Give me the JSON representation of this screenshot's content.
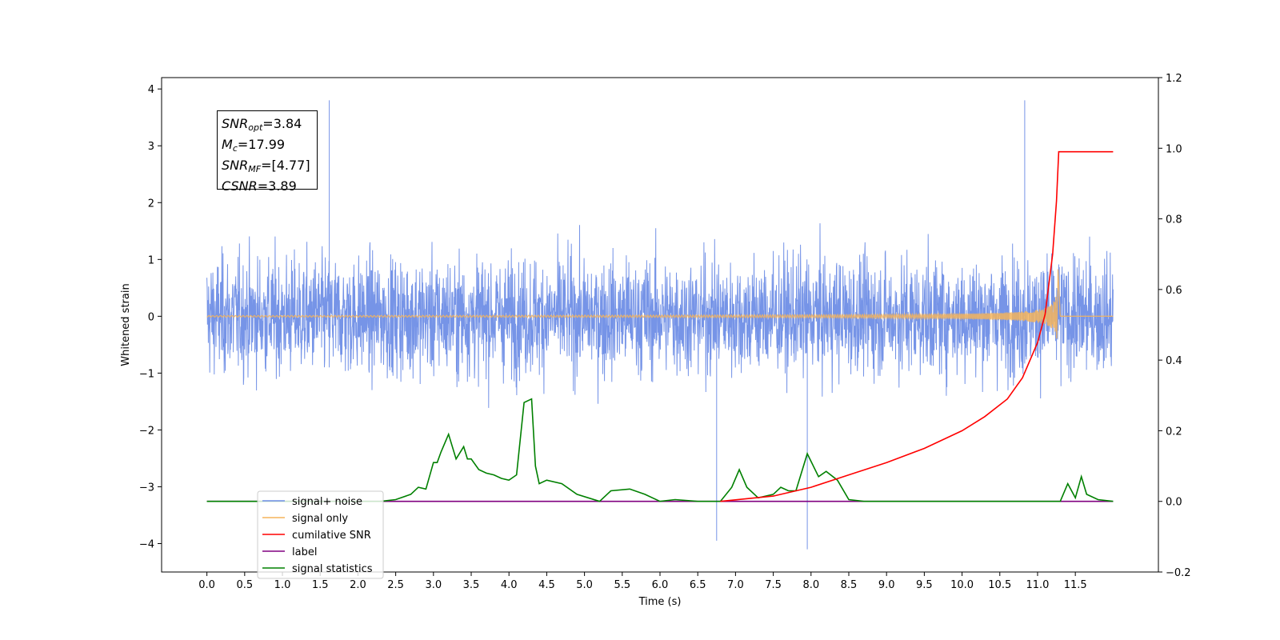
{
  "chart_data": {
    "type": "line",
    "xlabel": "Time (s)",
    "ylabel": "Whitened strain",
    "xlim": [
      -0.6,
      12.6
    ],
    "ylim": [
      -4.5,
      4.2
    ],
    "y2lim": [
      -0.2,
      1.2
    ],
    "xticks": [
      "0.0",
      "0.5",
      "1.0",
      "1.5",
      "2.0",
      "2.5",
      "3.0",
      "3.5",
      "4.0",
      "4.5",
      "5.0",
      "5.5",
      "6.0",
      "6.5",
      "7.0",
      "7.5",
      "8.0",
      "8.5",
      "9.0",
      "9.5",
      "10.0",
      "10.5",
      "11.0",
      "11.5"
    ],
    "yticks": [
      "−4",
      "−3",
      "−2",
      "−1",
      "0",
      "1",
      "2",
      "3",
      "4"
    ],
    "y2ticks": [
      "−0.2",
      "0.0",
      "0.2",
      "0.4",
      "0.6",
      "0.8",
      "1.0",
      "1.2"
    ],
    "colors": {
      "noise": "#6f8ee6",
      "signal": "#f5b45c",
      "cumsnr": "#ff0000",
      "label": "#800080",
      "stats": "#008000"
    },
    "series": [
      {
        "name": "signal+ noise",
        "axis": "left",
        "x_range": [
          0.0,
          12.0
        ],
        "y_extent": [
          -4.1,
          3.8
        ],
        "peaks": [
          {
            "x": 1.62,
            "y": 3.8
          },
          {
            "x": 10.83,
            "y": 3.8
          },
          {
            "x": 7.95,
            "y": -4.1
          },
          {
            "x": 6.75,
            "y": -3.95
          }
        ]
      },
      {
        "name": "signal only",
        "axis": "left",
        "x_range": [
          0.0,
          12.0
        ],
        "merger_time": 11.27,
        "peak_amplitude": 0.85
      },
      {
        "name": "cumilative SNR",
        "axis": "right",
        "x": [
          6.8,
          7.5,
          8.0,
          8.5,
          9.0,
          9.5,
          10.0,
          10.3,
          10.6,
          10.8,
          11.0,
          11.1,
          11.2,
          11.25,
          11.28,
          12.0
        ],
        "y": [
          0.0,
          0.015,
          0.04,
          0.075,
          0.11,
          0.15,
          0.2,
          0.24,
          0.29,
          0.35,
          0.45,
          0.53,
          0.7,
          0.85,
          0.99,
          0.99
        ]
      },
      {
        "name": "label",
        "axis": "right",
        "x": [
          0.0,
          12.0
        ],
        "y": [
          0.0,
          0.0
        ]
      },
      {
        "name": "signal statistics",
        "axis": "right",
        "x": [
          0.0,
          2.3,
          2.5,
          2.7,
          2.8,
          2.9,
          3.0,
          3.05,
          3.1,
          3.2,
          3.3,
          3.4,
          3.45,
          3.5,
          3.6,
          3.7,
          3.8,
          3.9,
          4.0,
          4.1,
          4.2,
          4.3,
          4.35,
          4.4,
          4.5,
          4.7,
          4.9,
          5.2,
          5.35,
          5.6,
          5.8,
          6.0,
          6.2,
          6.5,
          6.8,
          6.95,
          7.05,
          7.15,
          7.3,
          7.5,
          7.6,
          7.7,
          7.8,
          7.95,
          8.1,
          8.2,
          8.35,
          8.5,
          8.7,
          9.0,
          9.5,
          10.0,
          10.3,
          11.3,
          11.4,
          11.5,
          11.58,
          11.65,
          11.8,
          12.0
        ],
        "y": [
          0.0,
          0.0,
          0.005,
          0.02,
          0.04,
          0.035,
          0.11,
          0.11,
          0.14,
          0.19,
          0.12,
          0.155,
          0.12,
          0.12,
          0.09,
          0.08,
          0.075,
          0.065,
          0.06,
          0.075,
          0.28,
          0.29,
          0.1,
          0.05,
          0.06,
          0.05,
          0.02,
          0.0,
          0.03,
          0.035,
          0.02,
          0.0,
          0.005,
          0.0,
          0.0,
          0.04,
          0.09,
          0.04,
          0.01,
          0.02,
          0.04,
          0.03,
          0.03,
          0.135,
          0.07,
          0.085,
          0.06,
          0.005,
          0.0,
          0.0,
          0.0,
          0.0,
          0.0,
          0.0,
          0.05,
          0.01,
          0.07,
          0.02,
          0.005,
          0.0
        ]
      }
    ]
  },
  "info": {
    "snr_opt_sym": "SNR",
    "snr_opt_sub": "opt",
    "snr_opt_val": "=3.84",
    "mc_sym": "M",
    "mc_sub": "c",
    "mc_val": "=17.99",
    "snr_mf_sym": "SNR",
    "snr_mf_sub": "MF",
    "snr_mf_val": "=[4.77]",
    "csnr_sym": "CSNR",
    "csnr_val": "=3.89"
  },
  "legend": {
    "items": [
      {
        "label": "signal+ noise",
        "color": "#6f8ee6"
      },
      {
        "label": "signal only",
        "color": "#f5b45c"
      },
      {
        "label": "cumilative SNR",
        "color": "#ff0000"
      },
      {
        "label": "label",
        "color": "#800080"
      },
      {
        "label": "signal statistics",
        "color": "#008000"
      }
    ],
    "position": "lower-left"
  }
}
